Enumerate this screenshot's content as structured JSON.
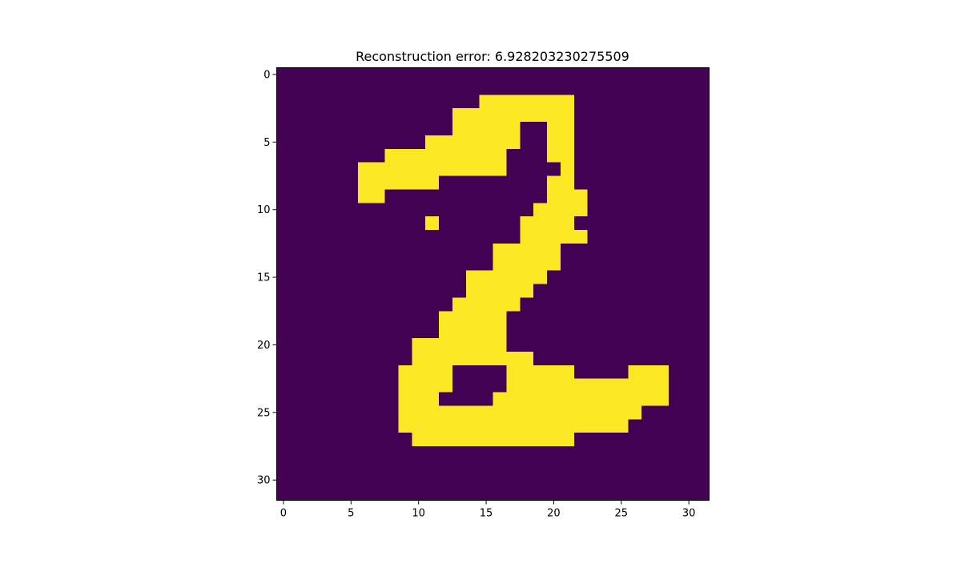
{
  "chart_data": {
    "type": "heatmap",
    "title": "Reconstruction error: 6.928203230275509",
    "xlabel": "",
    "ylabel": "",
    "xlim": [
      -0.5,
      31.5
    ],
    "ylim": [
      31.5,
      -0.5
    ],
    "x_ticks": [
      0,
      5,
      10,
      15,
      20,
      25,
      30
    ],
    "y_ticks": [
      0,
      5,
      10,
      15,
      20,
      25,
      30
    ],
    "grid": false,
    "colormap": {
      "low": "#440154",
      "high": "#fde725"
    },
    "matrix_rows": [
      "00000000000000000000000000000000",
      "00000000000000000000000000000000",
      "00000000000000011111110000000000",
      "00000000000001111111110000000000",
      "00000000000001111100110000000000",
      "00000000000111111100110000000000",
      "00000000111111111000110000000000",
      "00000011111111111000010000000000",
      "00000011111100000000110000000000",
      "00000011000000000000111000000000",
      "00000000000000000001111000000000",
      "00000000000100000011110000000000",
      "00000000000000000011111000000000",
      "00000000000000001111100000000000",
      "00000000000000001111100000000000",
      "00000000000000111111000000000000",
      "00000000000000111110000000000000",
      "00000000000001111100000000000000",
      "00000000000011111000000000000000",
      "00000000000011111000000000000000",
      "00000000001111111000000000000000",
      "00000000001111111110000000000000",
      "00000000011110000111110000111000",
      "00000000011110000111111111111000",
      "00000000011100001111111111111000",
      "00000000011111111111111111100000",
      "00000000011111111111111111000000",
      "00000000001111111111110000000000",
      "00000000000000000000000000000000",
      "00000000000000000000000000000000",
      "00000000000000000000000000000000",
      "00000000000000000000000000000000"
    ]
  }
}
